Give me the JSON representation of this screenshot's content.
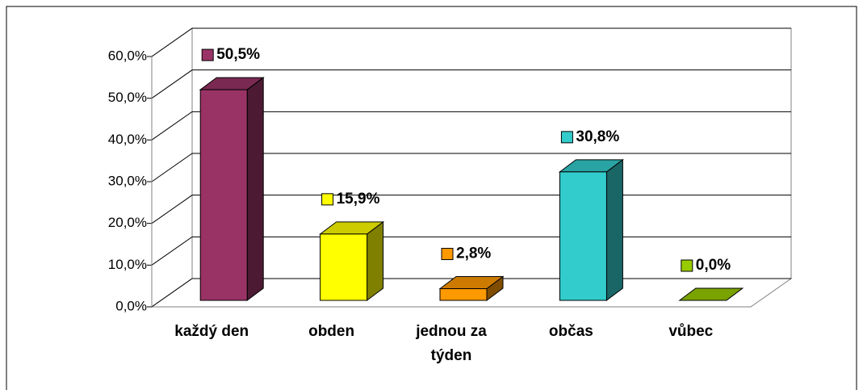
{
  "chart_data": {
    "type": "bar3d",
    "categories": [
      "každý den",
      "obden",
      "jednou za týden",
      "občas",
      "vůbec"
    ],
    "values": [
      50.5,
      15.9,
      2.8,
      30.8,
      0.0
    ],
    "value_labels": [
      "50,5%",
      "15,9%",
      "2,8%",
      "30,8%",
      "0,0%"
    ],
    "colors": [
      "#993366",
      "#ffff00",
      "#ff9900",
      "#33cccc",
      "#99cc00"
    ],
    "ylim": [
      0,
      60
    ],
    "yticks": [
      {
        "value": 0,
        "label": "0,0%"
      },
      {
        "value": 10,
        "label": "10,0%"
      },
      {
        "value": 20,
        "label": "20,0%"
      },
      {
        "value": 30,
        "label": "30,0%"
      },
      {
        "value": 40,
        "label": "40,0%"
      },
      {
        "value": 50,
        "label": "50,0%"
      },
      {
        "value": 60,
        "label": "60,0%"
      }
    ],
    "grid": true
  }
}
